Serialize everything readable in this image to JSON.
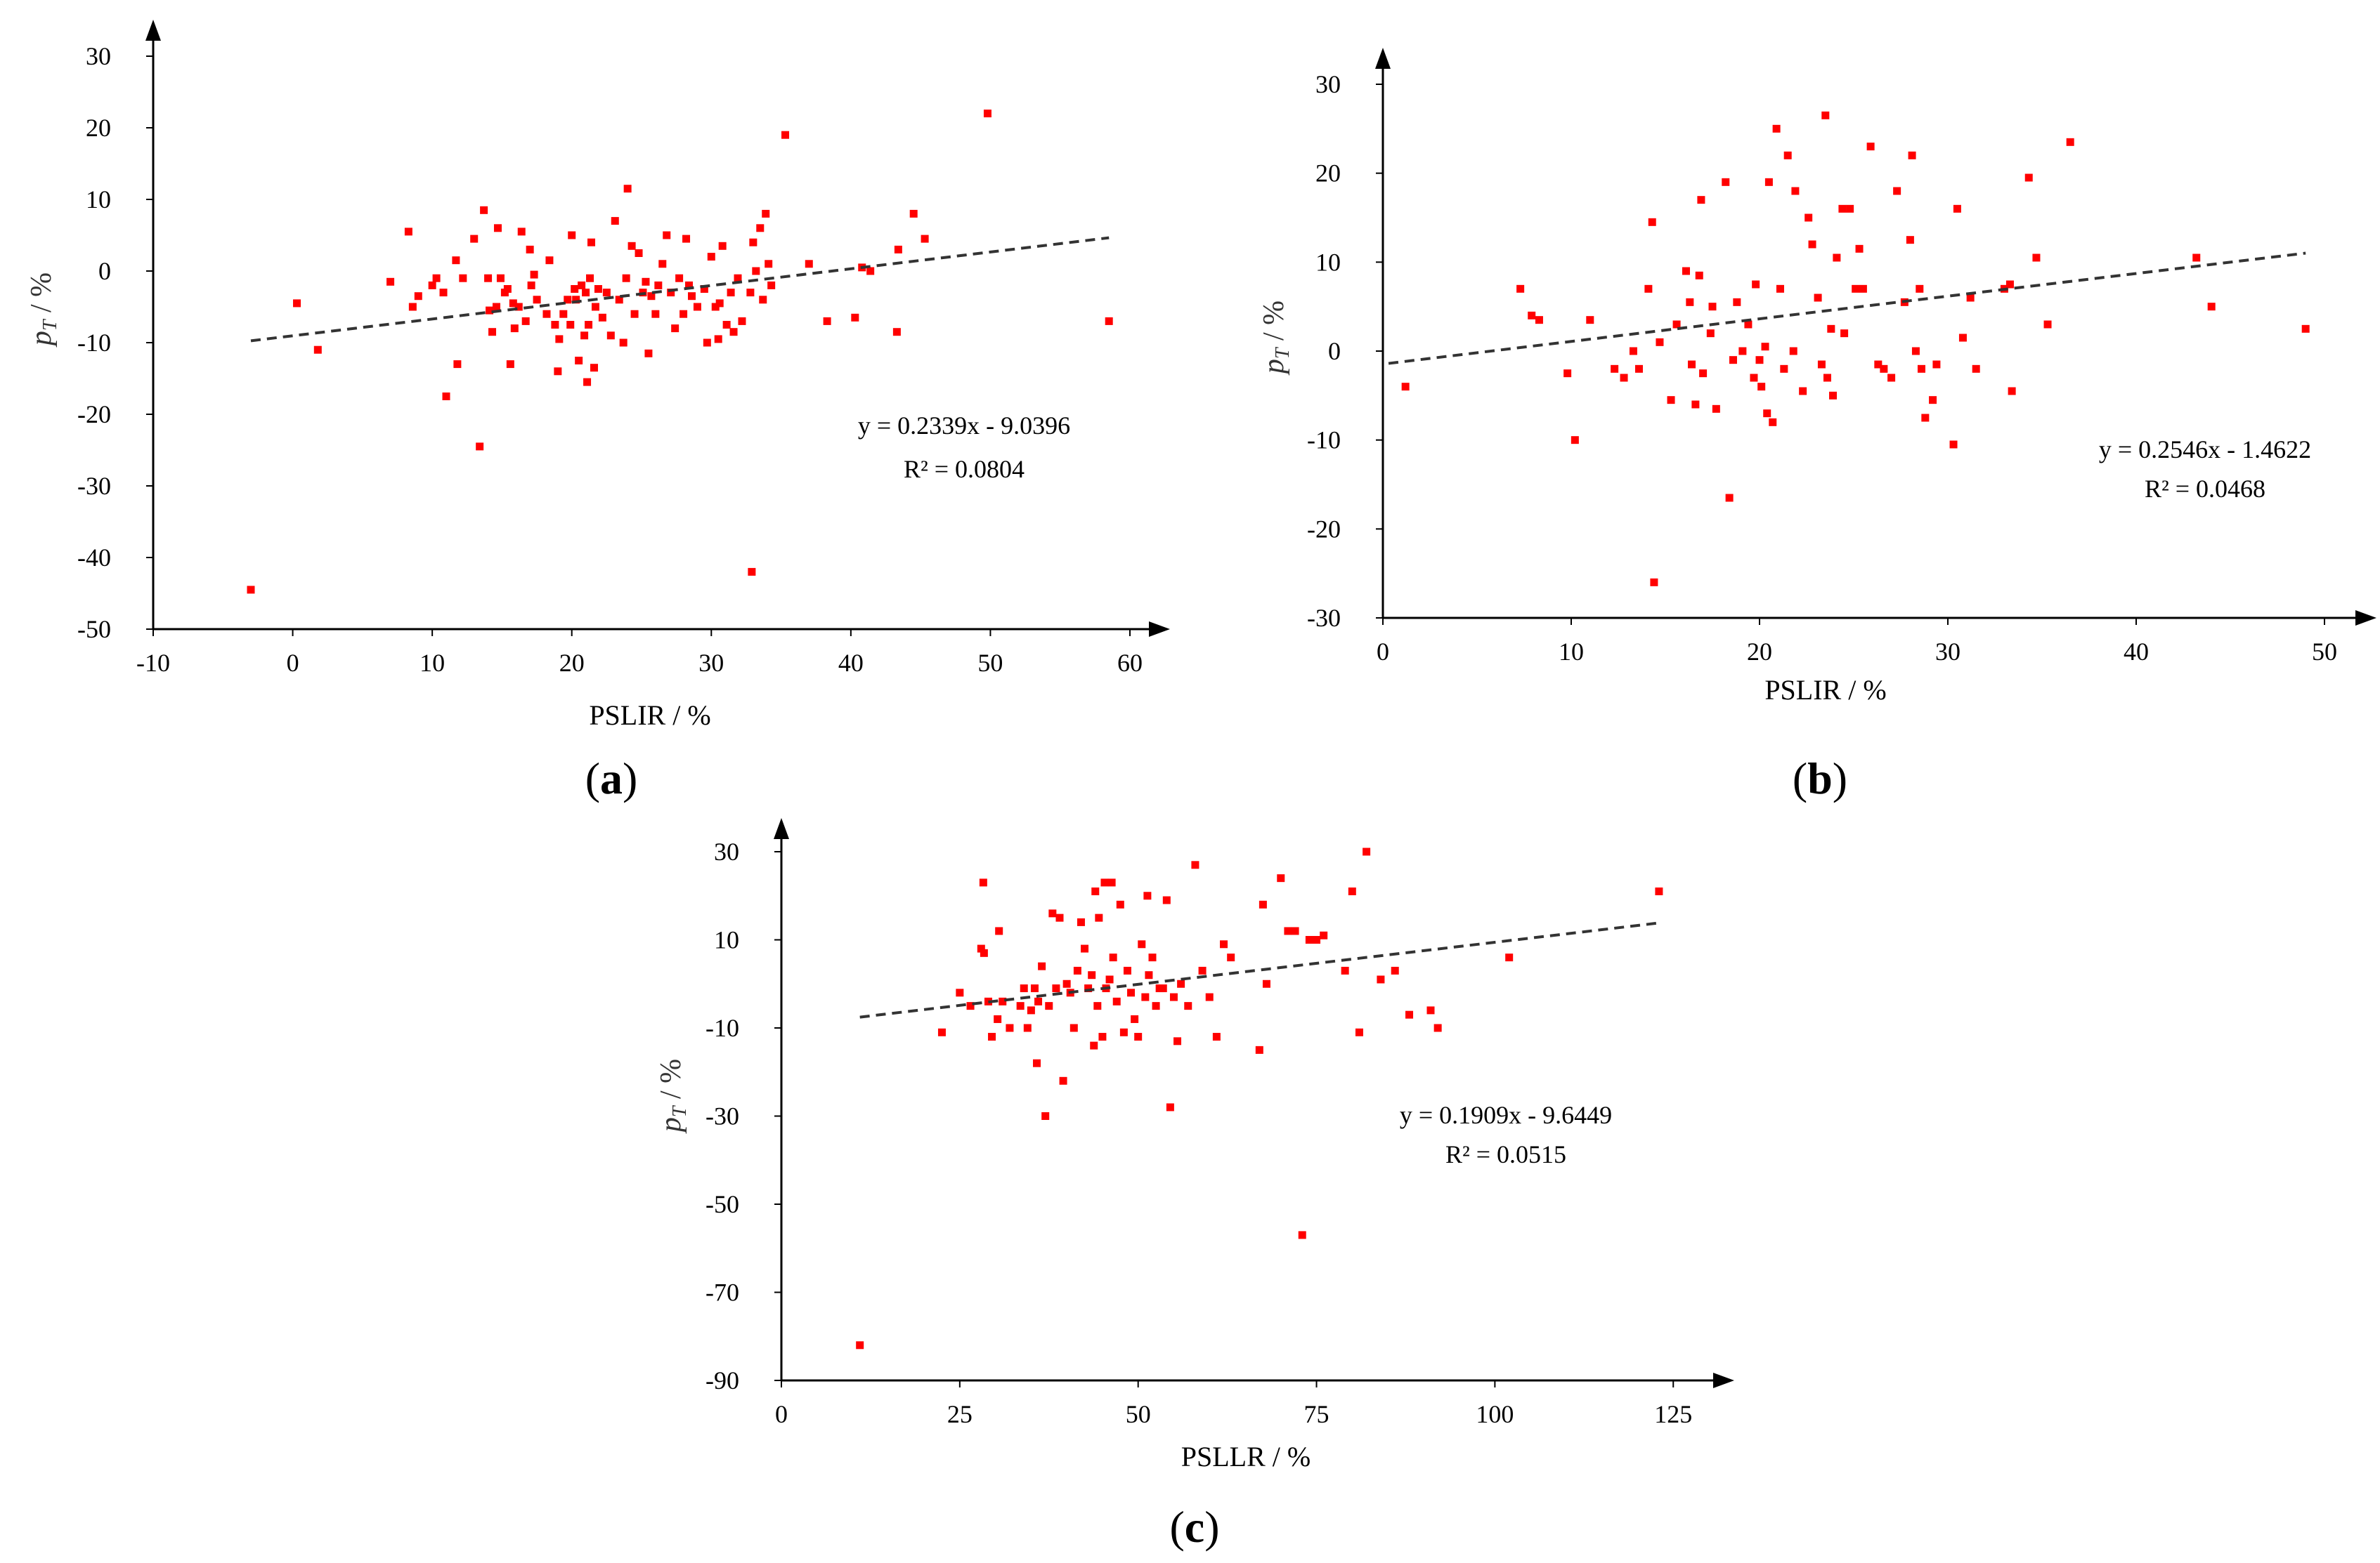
{
  "chart_data": [
    {
      "panel": "a",
      "type": "scatter",
      "xlabel": "PSLIR  / %",
      "ylabel": "p_T / %",
      "ylabel_main": "p",
      "ylabel_sub": "T",
      "ylabel_rest": "/ %",
      "xlim": [
        -10,
        60
      ],
      "ylim": [
        -50,
        30
      ],
      "xticks": [
        -10,
        0,
        10,
        20,
        30,
        40,
        50,
        60
      ],
      "yticks": [
        -50,
        -40,
        -30,
        -20,
        -10,
        0,
        10,
        20,
        30
      ],
      "point_color": "#ff0000",
      "trend": {
        "slope": 0.2339,
        "intercept": -9.0396,
        "x_range": [
          -3,
          58.5
        ]
      },
      "equation": "y = 0.2339x  - 9.0396",
      "r2": "R² = 0.0804",
      "label_bold": "a",
      "points": [
        [
          -3,
          -44.5
        ],
        [
          0.3,
          -4.5
        ],
        [
          1.8,
          -11
        ],
        [
          7,
          -1.5
        ],
        [
          8.3,
          5.5
        ],
        [
          8.6,
          -5
        ],
        [
          9,
          -3.5
        ],
        [
          10,
          -2
        ],
        [
          10.3,
          -1
        ],
        [
          10.8,
          -3
        ],
        [
          11,
          -17.5
        ],
        [
          11.7,
          1.5
        ],
        [
          11.8,
          -13
        ],
        [
          12.2,
          -1
        ],
        [
          13,
          4.5
        ],
        [
          13.4,
          -24.5
        ],
        [
          13.7,
          8.5
        ],
        [
          14,
          -1
        ],
        [
          14.1,
          -5.5
        ],
        [
          14.3,
          -8.5
        ],
        [
          14.6,
          -5
        ],
        [
          14.7,
          6
        ],
        [
          14.9,
          -1
        ],
        [
          15.2,
          -3
        ],
        [
          15.4,
          -2.5
        ],
        [
          15.6,
          -13
        ],
        [
          15.8,
          -4.5
        ],
        [
          15.9,
          -8
        ],
        [
          16.2,
          -5
        ],
        [
          16.4,
          5.5
        ],
        [
          16.7,
          -7
        ],
        [
          17,
          3
        ],
        [
          17.1,
          -2
        ],
        [
          17.3,
          -0.5
        ],
        [
          17.5,
          -4
        ],
        [
          18.2,
          -6
        ],
        [
          18.4,
          1.5
        ],
        [
          18.8,
          -7.5
        ],
        [
          19,
          -14
        ],
        [
          19.1,
          -9.5
        ],
        [
          19.4,
          -6
        ],
        [
          19.7,
          -4
        ],
        [
          19.9,
          -7.5
        ],
        [
          20,
          5
        ],
        [
          20.2,
          -2.5
        ],
        [
          20.3,
          -4
        ],
        [
          20.5,
          -12.5
        ],
        [
          20.7,
          -2
        ],
        [
          20.9,
          -9
        ],
        [
          21,
          -3
        ],
        [
          21.1,
          -15.5
        ],
        [
          21.2,
          -7.5
        ],
        [
          21.3,
          -1
        ],
        [
          21.4,
          4
        ],
        [
          21.6,
          -13.5
        ],
        [
          21.7,
          -5
        ],
        [
          21.9,
          -2.5
        ],
        [
          22.2,
          -6.5
        ],
        [
          22.5,
          -3
        ],
        [
          22.8,
          -9
        ],
        [
          23.1,
          7
        ],
        [
          23.4,
          -4
        ],
        [
          23.7,
          -10
        ],
        [
          23.9,
          -1
        ],
        [
          24,
          11.5
        ],
        [
          24.3,
          3.5
        ],
        [
          24.5,
          -6
        ],
        [
          24.8,
          2.5
        ],
        [
          25.1,
          -3
        ],
        [
          25.3,
          -1.5
        ],
        [
          25.5,
          -11.5
        ],
        [
          25.7,
          -3.5
        ],
        [
          26,
          -6
        ],
        [
          26.2,
          -2
        ],
        [
          26.5,
          1
        ],
        [
          26.8,
          5
        ],
        [
          27.1,
          -3
        ],
        [
          27.4,
          -8
        ],
        [
          27.7,
          -1
        ],
        [
          28,
          -6
        ],
        [
          28.2,
          4.5
        ],
        [
          28.4,
          -2
        ],
        [
          28.6,
          -3.5
        ],
        [
          29,
          -5
        ],
        [
          29.5,
          -2.5
        ],
        [
          29.7,
          -10
        ],
        [
          30,
          2
        ],
        [
          30.3,
          -5
        ],
        [
          30.5,
          -9.5
        ],
        [
          30.6,
          -4.5
        ],
        [
          30.8,
          3.5
        ],
        [
          31.1,
          -7.5
        ],
        [
          31.4,
          -3
        ],
        [
          31.6,
          -8.5
        ],
        [
          31.9,
          -1
        ],
        [
          32.2,
          -7
        ],
        [
          32.8,
          -3
        ],
        [
          32.9,
          -42
        ],
        [
          33,
          4
        ],
        [
          33.2,
          0
        ],
        [
          33.5,
          6
        ],
        [
          33.7,
          -4
        ],
        [
          33.9,
          8
        ],
        [
          34.1,
          1
        ],
        [
          34.3,
          -2
        ],
        [
          35.3,
          19
        ],
        [
          37,
          1
        ],
        [
          38.3,
          -7
        ],
        [
          40.3,
          -6.5
        ],
        [
          40.8,
          0.5
        ],
        [
          41.4,
          0
        ],
        [
          43.3,
          -8.5
        ],
        [
          43.4,
          3
        ],
        [
          44.5,
          8
        ],
        [
          45.3,
          4.5
        ],
        [
          49.8,
          22
        ],
        [
          58.5,
          -7
        ]
      ]
    },
    {
      "panel": "b",
      "type": "scatter",
      "xlabel": "PSLIR  / %",
      "ylabel": "p_T / %",
      "ylabel_main": "p",
      "ylabel_sub": "T",
      "ylabel_rest": "/ %",
      "xlim": [
        0,
        50
      ],
      "ylim": [
        -30,
        30
      ],
      "xticks": [
        0,
        10,
        20,
        30,
        40,
        50
      ],
      "yticks": [
        -30,
        -20,
        -10,
        0,
        10,
        20,
        30
      ],
      "point_color": "#ff0000",
      "trend": {
        "slope": 0.2546,
        "intercept": -1.4622,
        "x_range": [
          0.3,
          49
        ]
      },
      "equation": "y = 0.2546x  - 1.4622",
      "r2": "R² = 0.0468",
      "label_bold": "b",
      "points": [
        [
          1.2,
          -4
        ],
        [
          7.3,
          7
        ],
        [
          7.9,
          4
        ],
        [
          8.3,
          3.5
        ],
        [
          9.8,
          -2.5
        ],
        [
          10.2,
          -10
        ],
        [
          11,
          3.5
        ],
        [
          12.3,
          -2
        ],
        [
          12.8,
          -3
        ],
        [
          13.3,
          0
        ],
        [
          13.6,
          -2
        ],
        [
          14.1,
          7
        ],
        [
          14.3,
          14.5
        ],
        [
          14.4,
          -26
        ],
        [
          14.7,
          1
        ],
        [
          15.3,
          -5.5
        ],
        [
          15.6,
          3
        ],
        [
          16.1,
          9
        ],
        [
          16.3,
          5.5
        ],
        [
          16.4,
          -1.5
        ],
        [
          16.6,
          -6
        ],
        [
          16.8,
          8.5
        ],
        [
          16.9,
          17
        ],
        [
          17,
          -2.5
        ],
        [
          17.4,
          2
        ],
        [
          17.5,
          5
        ],
        [
          17.7,
          -6.5
        ],
        [
          18.2,
          19
        ],
        [
          18.4,
          -16.5
        ],
        [
          18.6,
          -1
        ],
        [
          18.8,
          5.5
        ],
        [
          19.1,
          0
        ],
        [
          19.4,
          3
        ],
        [
          19.7,
          -3
        ],
        [
          19.8,
          7.5
        ],
        [
          20,
          -1
        ],
        [
          20.1,
          -4
        ],
        [
          20.3,
          0.5
        ],
        [
          20.4,
          -7
        ],
        [
          20.5,
          19
        ],
        [
          20.7,
          -8
        ],
        [
          20.9,
          25
        ],
        [
          21.1,
          7
        ],
        [
          21.3,
          -2
        ],
        [
          21.5,
          22
        ],
        [
          21.8,
          0
        ],
        [
          21.9,
          18
        ],
        [
          22.3,
          -4.5
        ],
        [
          22.6,
          15
        ],
        [
          22.8,
          12
        ],
        [
          23.1,
          6
        ],
        [
          23.3,
          -1.5
        ],
        [
          23.5,
          26.5
        ],
        [
          23.6,
          -3
        ],
        [
          23.8,
          2.5
        ],
        [
          23.9,
          -5
        ],
        [
          24.1,
          10.5
        ],
        [
          24.4,
          16
        ],
        [
          24.8,
          16
        ],
        [
          24.5,
          2
        ],
        [
          25.1,
          7
        ],
        [
          25.3,
          11.5
        ],
        [
          25.5,
          7
        ],
        [
          25.9,
          23
        ],
        [
          26.3,
          -1.5
        ],
        [
          26.6,
          -2
        ],
        [
          27,
          -3
        ],
        [
          27.3,
          18
        ],
        [
          27.7,
          5.5
        ],
        [
          28,
          12.5
        ],
        [
          28.1,
          22
        ],
        [
          28.3,
          0
        ],
        [
          28.5,
          7
        ],
        [
          28.6,
          -2
        ],
        [
          28.8,
          -7.5
        ],
        [
          29.2,
          -5.5
        ],
        [
          29.4,
          -1.5
        ],
        [
          30.3,
          -10.5
        ],
        [
          30.5,
          16
        ],
        [
          30.8,
          1.5
        ],
        [
          31.2,
          6
        ],
        [
          31.5,
          -2
        ],
        [
          33,
          7
        ],
        [
          33.3,
          7.5
        ],
        [
          33.4,
          -4.5
        ],
        [
          34.3,
          19.5
        ],
        [
          34.7,
          10.5
        ],
        [
          35.3,
          3
        ],
        [
          36.5,
          23.5
        ],
        [
          43.2,
          10.5
        ],
        [
          44,
          5
        ],
        [
          49,
          2.5
        ]
      ]
    },
    {
      "panel": "c",
      "type": "scatter",
      "xlabel": "PSLLR  / %",
      "ylabel": "p_T / %",
      "ylabel_main": "p",
      "ylabel_sub": "T",
      "ylabel_rest": "/ %",
      "xlim": [
        0,
        130
      ],
      "ylim": [
        -90,
        30
      ],
      "xticks": [
        0,
        25,
        50,
        75,
        100,
        125
      ],
      "yticks": [
        -90,
        -70,
        -50,
        -30,
        -10,
        10,
        30
      ],
      "point_color": "#ff0000",
      "trend": {
        "slope": 0.1909,
        "intercept": -9.6449,
        "x_range": [
          11,
          123
        ]
      },
      "equation": "y = 0.1909x  - 9.6449",
      "r2": "R² = 0.0515",
      "label_bold": "c",
      "points": [
        [
          11,
          -82
        ],
        [
          22.5,
          -11
        ],
        [
          25,
          -2
        ],
        [
          26.5,
          -5
        ],
        [
          28,
          8
        ],
        [
          28.3,
          23
        ],
        [
          28.4,
          7
        ],
        [
          29,
          -4
        ],
        [
          29.5,
          -12
        ],
        [
          30.3,
          -8
        ],
        [
          30.5,
          12
        ],
        [
          31,
          -4
        ],
        [
          32,
          -10
        ],
        [
          33.5,
          -5
        ],
        [
          34,
          -1
        ],
        [
          34.5,
          -10
        ],
        [
          35,
          -6
        ],
        [
          35.5,
          -1
        ],
        [
          35.8,
          -18
        ],
        [
          36,
          -4
        ],
        [
          36.5,
          4
        ],
        [
          37,
          -30
        ],
        [
          37.5,
          -5
        ],
        [
          38,
          16
        ],
        [
          38.5,
          -1
        ],
        [
          39,
          15
        ],
        [
          39.5,
          -22
        ],
        [
          40,
          0
        ],
        [
          40.5,
          -2
        ],
        [
          41,
          -10
        ],
        [
          41.5,
          3
        ],
        [
          42,
          14
        ],
        [
          42.5,
          8
        ],
        [
          43,
          -1
        ],
        [
          43.5,
          2
        ],
        [
          43.8,
          -14
        ],
        [
          44,
          21
        ],
        [
          44.3,
          -5
        ],
        [
          44.5,
          15
        ],
        [
          45,
          -12
        ],
        [
          45.3,
          23
        ],
        [
          45.5,
          -1
        ],
        [
          46,
          1
        ],
        [
          46.3,
          23
        ],
        [
          46.5,
          6
        ],
        [
          47,
          -4
        ],
        [
          47.5,
          18
        ],
        [
          48,
          -11
        ],
        [
          48.5,
          3
        ],
        [
          49,
          -2
        ],
        [
          49.5,
          -8
        ],
        [
          50,
          -12
        ],
        [
          50.5,
          9
        ],
        [
          51,
          -3
        ],
        [
          51.3,
          20
        ],
        [
          51.5,
          2
        ],
        [
          52,
          6
        ],
        [
          52.5,
          -5
        ],
        [
          53,
          -1
        ],
        [
          53.5,
          -1
        ],
        [
          54,
          19
        ],
        [
          54.5,
          -28
        ],
        [
          55,
          -3
        ],
        [
          55.5,
          -13
        ],
        [
          56,
          0
        ],
        [
          57,
          -5
        ],
        [
          58,
          27
        ],
        [
          59,
          3
        ],
        [
          60,
          -3
        ],
        [
          61,
          -12
        ],
        [
          62,
          9
        ],
        [
          63,
          6
        ],
        [
          67,
          -15
        ],
        [
          67.5,
          18
        ],
        [
          68,
          0
        ],
        [
          70,
          24
        ],
        [
          71,
          12
        ],
        [
          72,
          12
        ],
        [
          73,
          -57
        ],
        [
          74,
          10
        ],
        [
          75,
          10
        ],
        [
          76,
          11
        ],
        [
          79,
          3
        ],
        [
          80,
          21
        ],
        [
          81,
          -11
        ],
        [
          82,
          30
        ],
        [
          84,
          1
        ],
        [
          86,
          3
        ],
        [
          88,
          -7
        ],
        [
          91,
          -6
        ],
        [
          92,
          -10
        ],
        [
          102,
          6
        ],
        [
          123,
          21
        ]
      ]
    }
  ]
}
